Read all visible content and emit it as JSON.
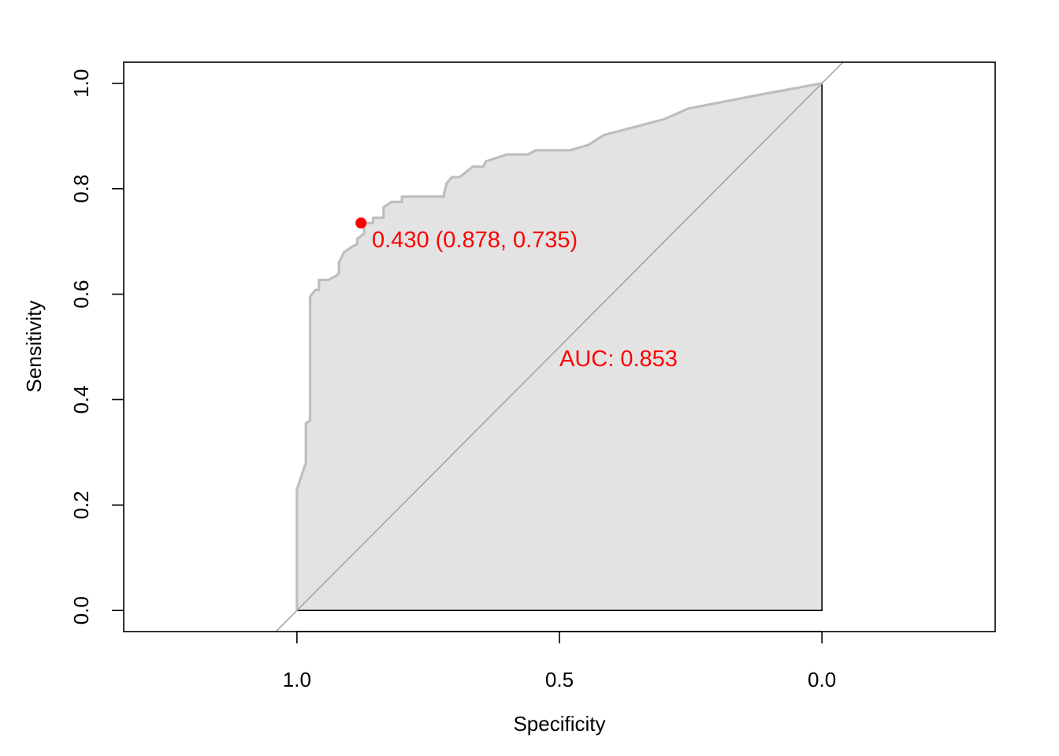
{
  "chart_data": {
    "type": "line",
    "title": "",
    "xlabel": "Specificity",
    "ylabel": "Sensitivity",
    "xlim": [
      1.33,
      -0.33
    ],
    "ylim": [
      -0.04,
      1.04
    ],
    "x_reversed": true,
    "x_ticks": [
      1.0,
      0.5,
      0.0
    ],
    "x_tick_labels": [
      "1.0",
      "0.5",
      "0.0"
    ],
    "y_ticks": [
      0.0,
      0.2,
      0.4,
      0.6,
      0.8,
      1.0
    ],
    "y_tick_labels": [
      "0.0",
      "0.2",
      "0.4",
      "0.6",
      "0.8",
      "1.0"
    ],
    "grid": false,
    "area_fill": true,
    "series": [
      {
        "color": "#bebebe",
        "points": [
          [
            1.0,
            0.0
          ],
          [
            1.0,
            0.23
          ],
          [
            0.983,
            0.28
          ],
          [
            0.983,
            0.355
          ],
          [
            0.975,
            0.36
          ],
          [
            0.975,
            0.595
          ],
          [
            0.965,
            0.608
          ],
          [
            0.958,
            0.608
          ],
          [
            0.958,
            0.627
          ],
          [
            0.94,
            0.627
          ],
          [
            0.925,
            0.635
          ],
          [
            0.92,
            0.64
          ],
          [
            0.92,
            0.66
          ],
          [
            0.91,
            0.68
          ],
          [
            0.895,
            0.69
          ],
          [
            0.885,
            0.695
          ],
          [
            0.885,
            0.705
          ],
          [
            0.872,
            0.715
          ],
          [
            0.872,
            0.735
          ],
          [
            0.855,
            0.735
          ],
          [
            0.855,
            0.745
          ],
          [
            0.835,
            0.745
          ],
          [
            0.835,
            0.765
          ],
          [
            0.82,
            0.775
          ],
          [
            0.8,
            0.775
          ],
          [
            0.8,
            0.785
          ],
          [
            0.75,
            0.785
          ],
          [
            0.72,
            0.785
          ],
          [
            0.72,
            0.79
          ],
          [
            0.715,
            0.81
          ],
          [
            0.705,
            0.822
          ],
          [
            0.69,
            0.822
          ],
          [
            0.665,
            0.842
          ],
          [
            0.645,
            0.842
          ],
          [
            0.64,
            0.852
          ],
          [
            0.6,
            0.865
          ],
          [
            0.56,
            0.865
          ],
          [
            0.545,
            0.873
          ],
          [
            0.52,
            0.873
          ],
          [
            0.48,
            0.873
          ],
          [
            0.445,
            0.883
          ],
          [
            0.415,
            0.902
          ],
          [
            0.365,
            0.915
          ],
          [
            0.3,
            0.932
          ],
          [
            0.255,
            0.952
          ],
          [
            0.12,
            0.978
          ],
          [
            0.0,
            1.0
          ]
        ]
      }
    ],
    "reference_line": {
      "intercept": 1,
      "slope": 1,
      "color": "#a0a0a0"
    },
    "best_point": {
      "x": 0.878,
      "y": 0.735,
      "color": "#ff0000"
    },
    "annotations": [
      {
        "text": "0.430 (0.878, 0.735)",
        "color": "#ff0000"
      },
      {
        "text": "AUC: 0.853",
        "color": "#ff0000"
      }
    ]
  }
}
